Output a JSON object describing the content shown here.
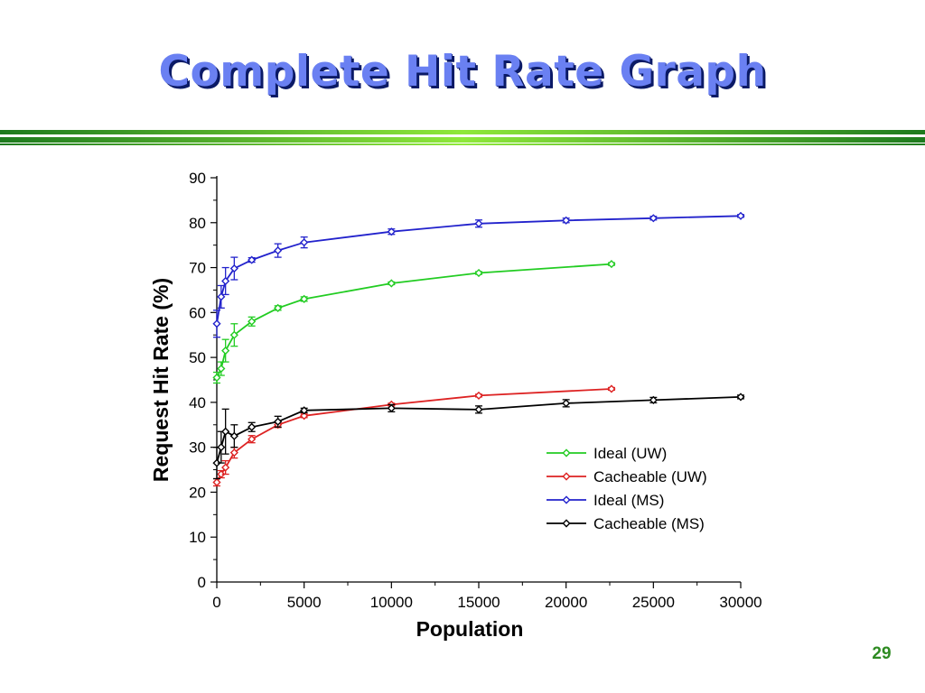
{
  "slide": {
    "title": "Complete Hit Rate Graph",
    "page_number": "29",
    "colors": {
      "title": "#6a80f2",
      "title_shadow": "#0b1a66",
      "rule_dark": "#1e7a1e",
      "rule_light": "#8fe83a",
      "page_number": "#2e8b22"
    }
  },
  "chart_data": {
    "type": "line",
    "title": "",
    "xlabel": "Population",
    "ylabel": "Request Hit Rate (%)",
    "xlim": [
      0,
      30000
    ],
    "ylim": [
      0,
      90
    ],
    "xticks": [
      0,
      5000,
      10000,
      15000,
      20000,
      25000,
      30000
    ],
    "yticks": [
      0,
      10,
      20,
      30,
      40,
      50,
      60,
      70,
      80,
      90
    ],
    "grid": false,
    "legend_position": "lower-right",
    "marker": "diamond",
    "error_bars": true,
    "series": [
      {
        "name": "Ideal (UW)",
        "color": "#22cc22",
        "x": [
          0,
          250,
          500,
          1000,
          2000,
          3500,
          5000,
          10000,
          15000,
          22600
        ],
        "y": [
          45.5,
          47.5,
          51.5,
          55,
          58,
          61,
          63,
          66.5,
          68.8,
          70.8
        ],
        "err": [
          1.2,
          1.5,
          2.5,
          2.5,
          1.0,
          0.5,
          0.5,
          0.3,
          0.3,
          0.3
        ]
      },
      {
        "name": "Cacheable (UW)",
        "color": "#dd2222",
        "x": [
          0,
          250,
          500,
          1000,
          2000,
          3500,
          5000,
          10000,
          15000,
          22600
        ],
        "y": [
          22.2,
          24,
          25.5,
          28.8,
          31.8,
          35,
          37,
          39.5,
          41.5,
          43
        ],
        "err": [
          0.8,
          0.8,
          1.5,
          1.2,
          0.8,
          0.6,
          0.4,
          0.3,
          0.3,
          0.3
        ]
      },
      {
        "name": "Ideal (MS)",
        "color": "#2222cc",
        "x": [
          0,
          250,
          500,
          1000,
          2000,
          3500,
          5000,
          10000,
          15000,
          20000,
          25000,
          30000
        ],
        "y": [
          57.5,
          63.5,
          67,
          69.8,
          71.7,
          73.8,
          75.6,
          78,
          79.8,
          80.5,
          81,
          81.5
        ],
        "err": [
          3.0,
          2.5,
          3.0,
          2.5,
          0.5,
          1.5,
          1.2,
          0.6,
          0.8,
          0.5,
          0.4,
          0.3
        ]
      },
      {
        "name": "Cacheable (MS)",
        "color": "#000000",
        "x": [
          0,
          250,
          500,
          1000,
          2000,
          3500,
          5000,
          10000,
          15000,
          20000,
          25000,
          30000
        ],
        "y": [
          26.5,
          30,
          33.5,
          32.5,
          34.5,
          35.7,
          38.2,
          38.7,
          38.4,
          39.8,
          40.5,
          41.2
        ],
        "err": [
          3.5,
          3.5,
          5.0,
          2.5,
          1.0,
          1.2,
          0.5,
          0.8,
          0.8,
          0.8,
          0.6,
          0.4
        ]
      }
    ]
  }
}
